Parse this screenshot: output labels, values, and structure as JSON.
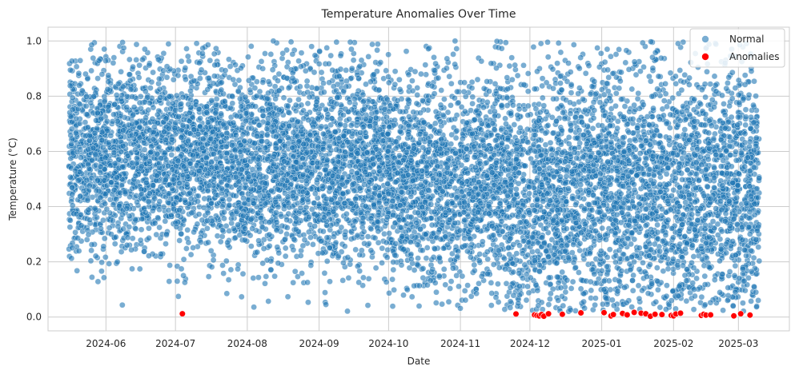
{
  "chart_data": {
    "type": "scatter",
    "title": "Temperature Anomalies Over Time",
    "xlabel": "Date",
    "ylabel": "Temperature (°C)",
    "x_axis_type": "date",
    "xlim": [
      "2024-05-07",
      "2025-03-23"
    ],
    "ylim": [
      -0.05,
      1.05
    ],
    "xticks": [
      "2024-06",
      "2024-07",
      "2024-08",
      "2024-09",
      "2024-10",
      "2024-11",
      "2024-12",
      "2025-01",
      "2025-02",
      "2025-03"
    ],
    "yticks": [
      0.0,
      0.2,
      0.4,
      0.6,
      0.8,
      1.0
    ],
    "grid": true,
    "legend_position": "top-right",
    "series": [
      {
        "name": "Normal",
        "color": "#1f77b4",
        "alpha": 0.6,
        "x_range": [
          "2024-05-16",
          "2025-03-10"
        ],
        "density_profile": [
          {
            "from": "2024-05-16",
            "to": "2024-07-20",
            "mean": 0.58,
            "sd": 0.17
          },
          {
            "from": "2024-07-20",
            "to": "2024-09-30",
            "mean": 0.55,
            "sd": 0.18
          },
          {
            "from": "2024-09-30",
            "to": "2024-11-20",
            "mean": 0.5,
            "sd": 0.19
          },
          {
            "from": "2024-11-20",
            "to": "2025-03-10",
            "mean": 0.46,
            "sd": 0.22
          }
        ],
        "range": [
          0.02,
          1.0
        ]
      },
      {
        "name": "Anomalies",
        "color": "#ff0000",
        "alpha": 1.0,
        "points": [
          {
            "x": "2024-07-04",
            "y": 0.012
          },
          {
            "x": "2024-11-25",
            "y": 0.011
          },
          {
            "x": "2024-12-03",
            "y": 0.008
          },
          {
            "x": "2024-12-04",
            "y": 0.006
          },
          {
            "x": "2024-12-05",
            "y": 0.004
          },
          {
            "x": "2024-12-06",
            "y": 0.009
          },
          {
            "x": "2024-12-07",
            "y": 0.003
          },
          {
            "x": "2024-12-09",
            "y": 0.012
          },
          {
            "x": "2024-12-15",
            "y": 0.01
          },
          {
            "x": "2024-12-23",
            "y": 0.015
          },
          {
            "x": "2025-01-02",
            "y": 0.016
          },
          {
            "x": "2025-01-05",
            "y": 0.004
          },
          {
            "x": "2025-01-06",
            "y": 0.009
          },
          {
            "x": "2025-01-10",
            "y": 0.013
          },
          {
            "x": "2025-01-12",
            "y": 0.008
          },
          {
            "x": "2025-01-15",
            "y": 0.017
          },
          {
            "x": "2025-01-18",
            "y": 0.014
          },
          {
            "x": "2025-01-20",
            "y": 0.012
          },
          {
            "x": "2025-01-22",
            "y": 0.003
          },
          {
            "x": "2025-01-24",
            "y": 0.01
          },
          {
            "x": "2025-01-27",
            "y": 0.009
          },
          {
            "x": "2025-01-31",
            "y": 0.006
          },
          {
            "x": "2025-02-01",
            "y": 0.004
          },
          {
            "x": "2025-02-02",
            "y": 0.011
          },
          {
            "x": "2025-02-04",
            "y": 0.014
          },
          {
            "x": "2025-02-13",
            "y": 0.006
          },
          {
            "x": "2025-02-14",
            "y": 0.01
          },
          {
            "x": "2025-02-15",
            "y": 0.007
          },
          {
            "x": "2025-02-17",
            "y": 0.008
          },
          {
            "x": "2025-02-27",
            "y": 0.004
          },
          {
            "x": "2025-03-02",
            "y": 0.012
          },
          {
            "x": "2025-03-06",
            "y": 0.007
          }
        ]
      }
    ]
  }
}
